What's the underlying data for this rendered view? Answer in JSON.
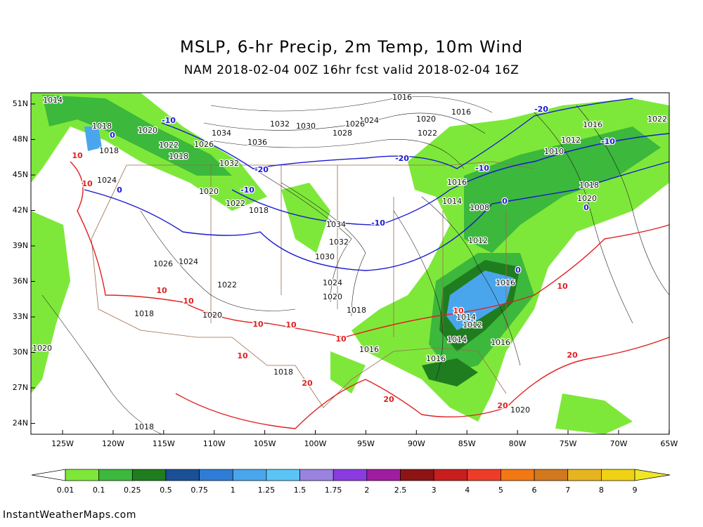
{
  "title": "MSLP, 6-hr Precip, 2m Temp, 10m Wind",
  "subtitle": "NAM 2018-02-04 00Z 16hr fcst valid 2018-02-04 16Z",
  "latitude_labels": [
    "51N",
    "48N",
    "45N",
    "42N",
    "39N",
    "36N",
    "33N",
    "30N",
    "27N",
    "24N"
  ],
  "longitude_labels": [
    "125W",
    "120W",
    "115W",
    "110W",
    "105W",
    "100W",
    "95W",
    "90W",
    "85W",
    "80W",
    "75W",
    "70W",
    "65W"
  ],
  "isobar_labels": [
    1014,
    1016,
    1016,
    1020,
    1024,
    1026,
    1028,
    1030,
    1032,
    1036,
    1034,
    1022,
    1020,
    1018,
    1018,
    1022,
    1026,
    1018,
    1032,
    1024,
    1020,
    1022,
    1018,
    1034,
    1032,
    1030,
    1024,
    1020,
    1022,
    1018,
    1020,
    1018,
    1016,
    1018,
    1016,
    1014,
    1012,
    1014,
    1016,
    1012,
    1008,
    1014,
    1016,
    1010,
    1012,
    1016,
    1022,
    1018,
    1020,
    1020,
    1018,
    1020,
    1016,
    1026,
    1024
  ],
  "cold_temperature_labels": [
    -20,
    -10,
    -10,
    -20,
    -20,
    -10,
    -10,
    -10,
    0,
    0,
    0,
    0,
    0
  ],
  "warm_temperature_labels": [
    10,
    10,
    10,
    10,
    10,
    10,
    10,
    10,
    10,
    10,
    20,
    20,
    20,
    20
  ],
  "colorbar": {
    "labels": [
      0.01,
      0.1,
      0.25,
      0.5,
      0.75,
      1,
      1.25,
      1.5,
      1.75,
      2,
      2.5,
      3,
      4,
      5,
      6,
      7,
      8,
      9
    ],
    "colors": [
      "#7ee83a",
      "#3cb83c",
      "#1f7d1f",
      "#1b4f96",
      "#2f7cd6",
      "#4aa6ec",
      "#5ac4f5",
      "#9a83e0",
      "#8a3ce0",
      "#a01ca0",
      "#8c1414",
      "#c81e1e",
      "#ee3c28",
      "#f27814",
      "#d2781e",
      "#e6b41e",
      "#f0d214",
      "#f0e628"
    ]
  },
  "credit": "InstantWeatherMaps.com"
}
